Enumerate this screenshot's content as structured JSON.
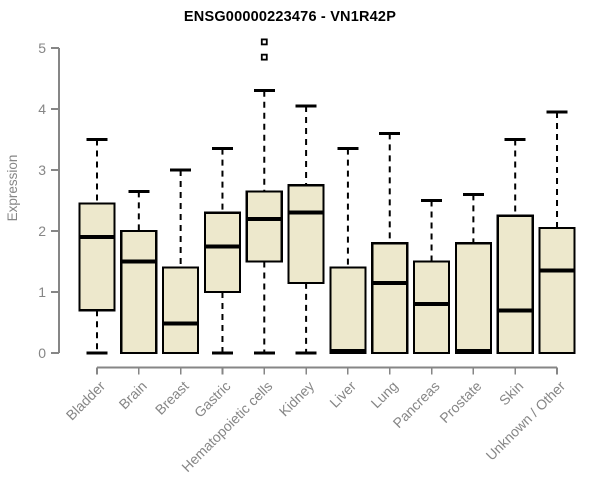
{
  "chart_data": {
    "type": "boxplot",
    "title": "ENSG00000223476 - VN1R42P",
    "xlabel": "",
    "ylabel": "Expression",
    "ylim": [
      0,
      5
    ],
    "yticks": [
      0,
      1,
      2,
      3,
      4,
      5
    ],
    "grid": false,
    "legend": "none",
    "categories": [
      "Bladder",
      "Brain",
      "Breast",
      "Gastric",
      "Hematopoietic cells",
      "Kidney",
      "Liver",
      "Lung",
      "Pancreas",
      "Prostate",
      "Skin",
      "Unknown / Other"
    ],
    "boxes": [
      {
        "label": "Bladder",
        "whisker_low": 0,
        "q1": 0.7,
        "median": 1.9,
        "q3": 2.45,
        "whisker_high": 3.5,
        "outliers": []
      },
      {
        "label": "Brain",
        "whisker_low": 0,
        "q1": 0,
        "median": 1.5,
        "q3": 2.0,
        "whisker_high": 2.65,
        "outliers": []
      },
      {
        "label": "Breast",
        "whisker_low": 0,
        "q1": 0,
        "median": 0.48,
        "q3": 1.4,
        "whisker_high": 3.0,
        "outliers": []
      },
      {
        "label": "Gastric",
        "whisker_low": 0,
        "q1": 1.0,
        "median": 1.75,
        "q3": 2.3,
        "whisker_high": 3.35,
        "outliers": []
      },
      {
        "label": "Hematopoietic cells",
        "whisker_low": 0,
        "q1": 1.5,
        "median": 2.2,
        "q3": 2.65,
        "whisker_high": 4.3,
        "outliers": [
          4.85,
          5.1
        ]
      },
      {
        "label": "Kidney",
        "whisker_low": 0,
        "q1": 1.15,
        "median": 2.3,
        "q3": 2.75,
        "whisker_high": 4.05,
        "outliers": []
      },
      {
        "label": "Liver",
        "whisker_low": 0,
        "q1": 0,
        "median": 0.03,
        "q3": 1.4,
        "whisker_high": 3.35,
        "outliers": []
      },
      {
        "label": "Lung",
        "whisker_low": 0,
        "q1": 0,
        "median": 1.15,
        "q3": 1.8,
        "whisker_high": 3.6,
        "outliers": []
      },
      {
        "label": "Pancreas",
        "whisker_low": 0,
        "q1": 0,
        "median": 0.8,
        "q3": 1.5,
        "whisker_high": 2.5,
        "outliers": []
      },
      {
        "label": "Prostate",
        "whisker_low": 0,
        "q1": 0,
        "median": 0.03,
        "q3": 1.8,
        "whisker_high": 2.6,
        "outliers": []
      },
      {
        "label": "Skin",
        "whisker_low": 0,
        "q1": 0,
        "median": 0.7,
        "q3": 2.25,
        "whisker_high": 3.5,
        "outliers": []
      },
      {
        "label": "Unknown / Other",
        "whisker_low": 0,
        "q1": 0,
        "median": 1.35,
        "q3": 2.05,
        "whisker_high": 3.95,
        "outliers": []
      }
    ],
    "colors": {
      "box_fill": "#EDE8CC",
      "box_border": "#000000",
      "median": "#000000",
      "whisker": "#000000",
      "axis": "#868686",
      "title": "#000000",
      "background": "#ffffff"
    }
  }
}
